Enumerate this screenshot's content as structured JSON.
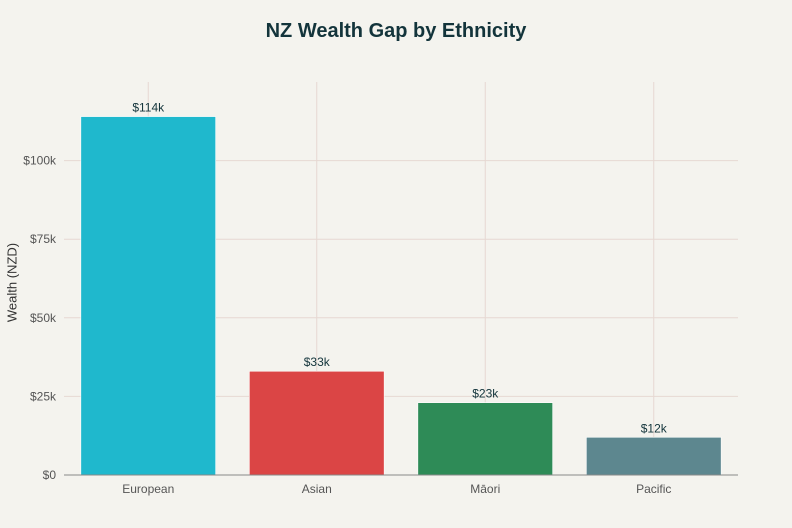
{
  "chart_data": {
    "type": "bar",
    "title": "NZ Wealth Gap by Ethnicity",
    "xlabel": "",
    "ylabel": "Wealth (NZD)",
    "categories": [
      "European",
      "Asian",
      "Māori",
      "Pacific"
    ],
    "values": [
      114000,
      33000,
      23000,
      12000
    ],
    "data_labels": [
      "$114k",
      "$33k",
      "$23k",
      "$12k"
    ],
    "colors": [
      "#1fb8cd",
      "#db4545",
      "#2e8b57",
      "#5d878f"
    ],
    "ylim": [
      0,
      125000
    ],
    "yticks": [
      0,
      25000,
      50000,
      75000,
      100000
    ],
    "ytick_labels": [
      "$0",
      "$25k",
      "$50k",
      "$75k",
      "$100k"
    ],
    "grid": true
  }
}
